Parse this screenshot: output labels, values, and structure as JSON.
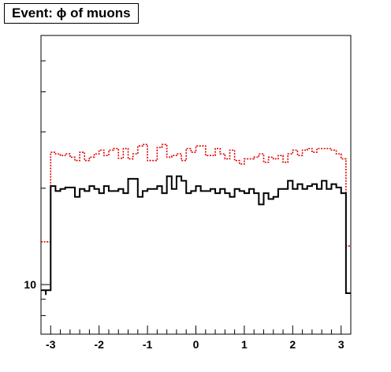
{
  "chart_data": {
    "type": "histogram-step",
    "title": "Event: ϕ of muons",
    "xlabel": "",
    "ylabel": "",
    "xlim": [
      -3.2,
      3.2
    ],
    "ylim": [
      7,
      60
    ],
    "yscale": "log",
    "x_ticks": [
      -3,
      -2,
      -1,
      0,
      1,
      2,
      3
    ],
    "x_tick_labels": [
      "-3",
      "-2",
      "-1",
      "0",
      "1",
      "2",
      "3"
    ],
    "y_ticks": [
      10
    ],
    "y_tick_labels": [
      "10"
    ],
    "y_minor_ticks": [
      8,
      9,
      20,
      30,
      40,
      50
    ],
    "bin_edges": [
      -3.2,
      -3.1,
      -3.0,
      -2.9,
      -2.8,
      -2.7,
      -2.6,
      -2.5,
      -2.4,
      -2.3,
      -2.2,
      -2.1,
      -2.0,
      -1.9,
      -1.8,
      -1.7,
      -1.6,
      -1.5,
      -1.4,
      -1.3,
      -1.2,
      -1.1,
      -1.0,
      -0.9,
      -0.8,
      -0.7,
      -0.6,
      -0.5,
      -0.4,
      -0.3,
      -0.2,
      -0.1,
      0.0,
      0.1,
      0.2,
      0.3,
      0.4,
      0.5,
      0.6,
      0.7,
      0.8,
      0.9,
      1.0,
      1.1,
      1.2,
      1.3,
      1.4,
      1.5,
      1.6,
      1.7,
      1.8,
      1.9,
      2.0,
      2.1,
      2.2,
      2.3,
      2.4,
      2.5,
      2.6,
      2.7,
      2.8,
      2.9,
      3.0,
      3.1,
      3.2
    ],
    "series": [
      {
        "color": "#e00000",
        "style": "dotted",
        "values": [
          13.6,
          25.9,
          25.6,
          25.3,
          25.6,
          25.0,
          24.4,
          25.9,
          24.4,
          25.0,
          25.6,
          26.3,
          25.3,
          26.3,
          26.6,
          24.8,
          26.6,
          24.7,
          25.6,
          27.1,
          27.4,
          24.4,
          24.4,
          26.8,
          27.4,
          25.0,
          25.3,
          25.6,
          24.4,
          26.6,
          25.9,
          27.1,
          27.1,
          25.3,
          25.3,
          26.6,
          25.6,
          24.7,
          26.3,
          24.4,
          23.8,
          24.7,
          24.7,
          25.0,
          25.6,
          24.1,
          25.0,
          24.7,
          25.3,
          24.1,
          25.6,
          26.3,
          25.3,
          26.3,
          26.6,
          25.9,
          26.6,
          26.6,
          26.6,
          26.3,
          25.6,
          24.7,
          13.2
        ],
        "range": [
          -3.1,
          3.2
        ]
      },
      {
        "color": "#000000",
        "style": "solid",
        "values": [
          9.6,
          20.3,
          19.6,
          19.9,
          20.1,
          20.1,
          18.8,
          19.9,
          19.6,
          20.3,
          19.9,
          19.3,
          20.3,
          19.6,
          19.6,
          19.9,
          19.3,
          21.4,
          21.4,
          18.8,
          19.6,
          19.9,
          19.9,
          20.3,
          19.3,
          21.8,
          19.9,
          21.8,
          21.1,
          19.3,
          19.6,
          20.3,
          19.6,
          19.6,
          19.9,
          19.3,
          19.9,
          19.3,
          18.8,
          19.9,
          19.6,
          19.3,
          19.9,
          19.3,
          17.8,
          19.3,
          18.5,
          18.8,
          19.9,
          19.9,
          21.1,
          19.9,
          20.6,
          19.9,
          20.3,
          20.6,
          19.9,
          21.1,
          19.9,
          20.6,
          20.1,
          19.3,
          9.4
        ],
        "range": [
          -3.1,
          3.2
        ]
      }
    ],
    "grid": false,
    "legend": "none"
  }
}
